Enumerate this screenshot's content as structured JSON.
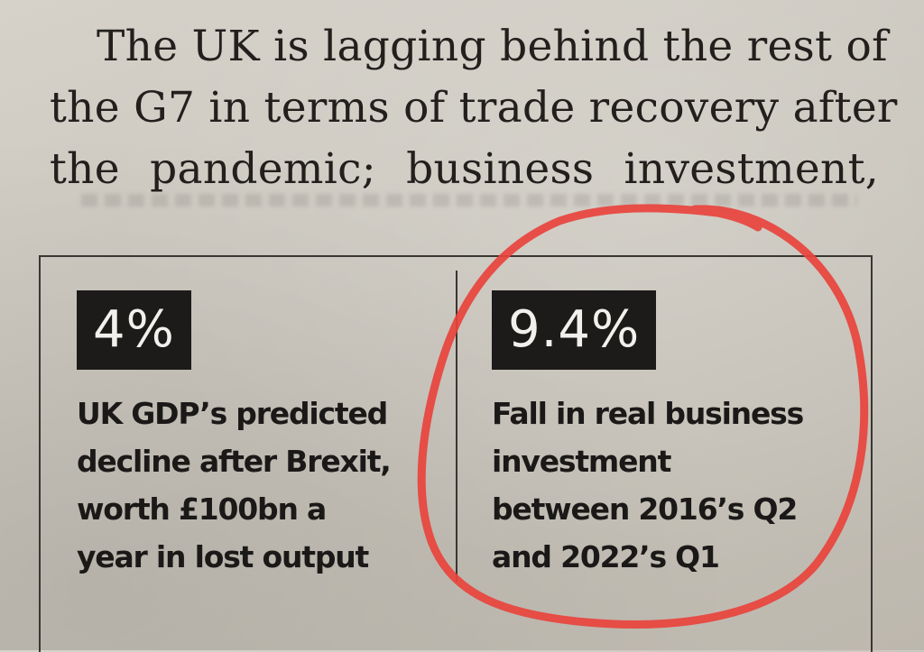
{
  "article": {
    "lines": [
      "The UK is lagging behind the rest of",
      "the G7 in terms of trade recovery after",
      "the pandemic; business investment,"
    ]
  },
  "stats": [
    {
      "value": "4%",
      "description": [
        "UK GDP’s predicted",
        "decline after Brexit,",
        "worth £100bn a",
        "year in lost output"
      ]
    },
    {
      "value": "9.4%",
      "description": [
        "Fall in real business",
        "investment",
        "between 2016’s Q2",
        "and 2022’s Q1"
      ]
    }
  ],
  "annotation": {
    "shape": "hand-drawn circle",
    "color": "#e8433c"
  }
}
